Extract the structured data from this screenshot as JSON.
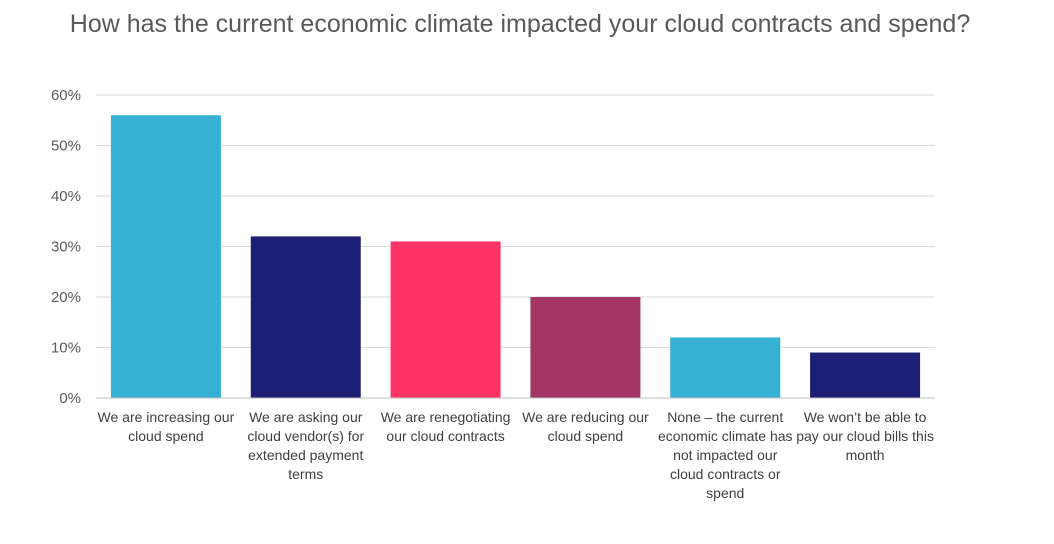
{
  "chart_data": {
    "type": "bar",
    "title": "How has the current economic climate impacted your cloud contracts and spend?",
    "xlabel": "",
    "ylabel": "",
    "ylim": [
      0,
      60
    ],
    "y_ticks": [
      "0%",
      "10%",
      "20%",
      "30%",
      "40%",
      "50%",
      "60%"
    ],
    "y_tick_values": [
      0,
      10,
      20,
      30,
      40,
      50,
      60
    ],
    "grid": true,
    "legend": "none",
    "categories": [
      "We are increasing our cloud spend",
      "We are asking our cloud vendor(s) for extended payment terms",
      "We are renegotiating our cloud contracts",
      "We are reducing our cloud spend",
      "None – the current economic climate has not impacted our cloud contracts or spend",
      "We won’t be able to pay our cloud bills this month"
    ],
    "values": [
      56,
      32,
      31,
      20,
      12,
      9
    ],
    "bar_colors": [
      "#36b1d4",
      "#1c1f73",
      "#ff3366",
      "#a23564",
      "#36b1d4",
      "#1c1f73"
    ],
    "axis_color": "#bfbfbf",
    "grid_color": "#d9d9d9"
  }
}
